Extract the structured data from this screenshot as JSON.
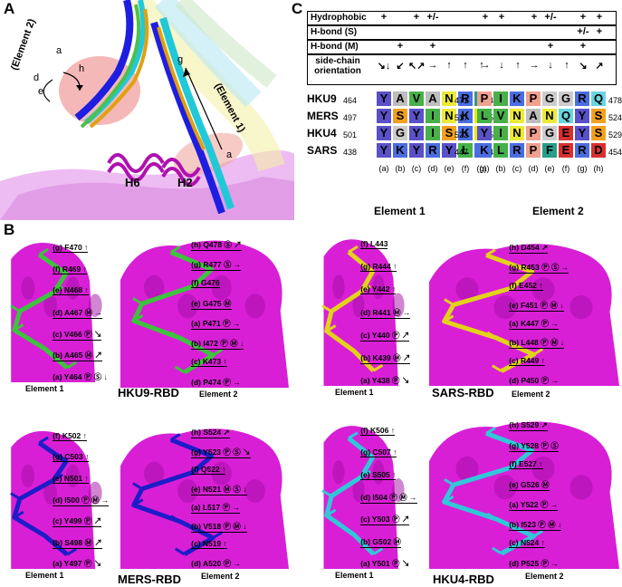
{
  "panels": {
    "a": "A",
    "b": "B",
    "c": "C"
  },
  "panelA": {
    "element2_label": "(Element 2)",
    "element1_label": "(Element 1)",
    "letters_left": [
      "a",
      "d",
      "e",
      "h"
    ],
    "letters_right": [
      "g",
      "a"
    ],
    "h6": "H6",
    "h2": "H2"
  },
  "panelC": {
    "rows": [
      {
        "label": "Hydrophobic",
        "marks_e1": [
          "+",
          "",
          "+",
          "+/-",
          "",
          "",
          ""
        ],
        "marks_e2": [
          "+",
          "+",
          "",
          "+",
          "+/-",
          "",
          "+",
          "+"
        ]
      },
      {
        "label": "H-bond (S)",
        "marks_e1": [
          "",
          "",
          "",
          "",
          "",
          "",
          ""
        ],
        "marks_e2": [
          "",
          "",
          "",
          "",
          "",
          "",
          "+/-",
          "+"
        ]
      },
      {
        "label": "H-bond (M)",
        "marks_e1": [
          "",
          "+",
          "",
          "+",
          "",
          "",
          ""
        ],
        "marks_e2": [
          "",
          "",
          "",
          "",
          "+",
          "",
          "+",
          ""
        ]
      },
      {
        "label": "side-chain orientation",
        "marks_e1": [
          "↘↓",
          "↙",
          "↖↗",
          "→",
          "↑",
          "↑",
          "↑"
        ],
        "marks_e2": [
          "→",
          "↓",
          "↑",
          "→",
          "↓",
          "↑",
          "↘",
          "↗"
        ]
      }
    ],
    "sequences": [
      {
        "name": "HKU9",
        "start1": "464",
        "end1": "470",
        "e1": [
          "Y",
          "A",
          "V",
          "A",
          "N",
          "R",
          "F"
        ],
        "start2": "471",
        "end2": "478",
        "e2": [
          "P",
          "I",
          "K",
          "P",
          "G",
          "G",
          "R",
          "Q"
        ]
      },
      {
        "name": "MERS",
        "start1": "497",
        "end1": "503",
        "e1": [
          "Y",
          "S",
          "Y",
          "I",
          "N",
          "K",
          "C"
        ],
        "start2": "517",
        "end2": "524",
        "e2": [
          "L",
          "V",
          "N",
          "A",
          "N",
          "Q",
          "Y",
          "S"
        ]
      },
      {
        "name": "HKU4",
        "start1": "501",
        "end1": "507",
        "e1": [
          "Y",
          "G",
          "Y",
          "I",
          "S",
          "K",
          "C"
        ],
        "start2": "522",
        "end2": "529",
        "e2": [
          "Y",
          "I",
          "N",
          "P",
          "G",
          "E",
          "Y",
          "S"
        ]
      },
      {
        "name": "SARS",
        "start1": "438",
        "end1": "444",
        "e1": [
          "Y",
          "K",
          "Y",
          "R",
          "Y",
          "L",
          "R"
        ],
        "start2": "447",
        "end2": "454",
        "e2": [
          "K",
          "L",
          "R",
          "P",
          "F",
          "E",
          "R",
          "D"
        ]
      }
    ],
    "cols_e1": [
      "(a)",
      "(b)",
      "(c)",
      "(d)",
      "(e)",
      "(f)",
      "(g)"
    ],
    "cols_e2": [
      "(a)",
      "(b)",
      "(c)",
      "(d)",
      "(e)",
      "(f)",
      "(g)",
      "(h)"
    ],
    "element1_title": "Element 1",
    "element2_title": "Element 2"
  },
  "panelB": {
    "hku9_e1": [
      "(g) F470 ↑",
      "(f) R469 ↑",
      "(e) N468 ↑",
      "(d) A467 Ⓜ →",
      "(c) V466 Ⓟ ↘",
      "(b) A465 Ⓜ ↗",
      "(a) Y464 Ⓟ Ⓢ ↓"
    ],
    "hku9_e2": [
      "(h) Q478 Ⓢ ↗",
      "(g) R477 Ⓢ →",
      "(f) G476",
      "(e) G475 Ⓜ",
      "(a) P471 Ⓟ →",
      "(b) I472 Ⓟ Ⓜ ↓",
      "(c) K473 ↑",
      "(d) P474 Ⓟ →"
    ],
    "sars_e1": [
      "(f) L443",
      "(g) R444 ↑",
      "(e) Y442 ↑",
      "(d) R441 Ⓜ →",
      "(c) Y440 Ⓟ ↗",
      "(b) K439 Ⓜ ↗",
      "(a) Y438 Ⓟ ↘"
    ],
    "sars_e2": [
      "(h) D454 ↗",
      "(g) R453 Ⓟ Ⓢ →",
      "(f) E452 ↑",
      "(e) F451 Ⓟ Ⓜ ↓",
      "(a) K447 Ⓟ →",
      "(b) L448 Ⓟ Ⓜ ↓",
      "(c) R449 ↑",
      "(d) P450 Ⓟ →"
    ],
    "mers_e1": [
      "(f) K502 ↑",
      "(g) C503 ↑",
      "(e) N501 ↑",
      "(d) I500 Ⓟ Ⓜ →",
      "(c) Y499 Ⓟ ↗",
      "(b) S498 Ⓜ ↗",
      "(a) Y497 Ⓟ ↘"
    ],
    "mers_e2": [
      "(h) S524 ↗",
      "(g) Y523 Ⓟ Ⓢ ↘",
      "(f) Q522 ↑",
      "(e) N521 Ⓜ Ⓢ ↓",
      "(a) L517 Ⓟ →",
      "(b) V518 Ⓟ Ⓜ ↓",
      "(c) N519 ↑",
      "(d) A520 Ⓟ →"
    ],
    "hku4_e1": [
      "(f) K506 ↑",
      "(g) C507 ↑",
      "(e) S505 ↑",
      "(d) I504 Ⓟ Ⓜ →",
      "(c) Y503 Ⓟ ↗",
      "(b) G502 Ⓜ",
      "(a) Y501 Ⓟ ↘"
    ],
    "hku4_e2": [
      "(h) S529 ↗",
      "(g) Y528 Ⓟ Ⓢ",
      "(f) E527 ↑",
      "(e) G526 Ⓜ",
      "(a) Y522 Ⓟ →",
      "(b) I523 Ⓟ Ⓜ ↓",
      "(c) N524 ↑",
      "(d) P525 Ⓟ →"
    ],
    "names": {
      "hku9": "HKU9-RBD",
      "sars": "SARS-RBD",
      "mers": "MERS-RBD",
      "hku4": "HKU4-RBD"
    },
    "elem1": "Element 1",
    "elem2": "Element 2"
  },
  "colors": {
    "magenta": "#d81fd6",
    "magenta_dark": "#a30ea6",
    "green_stick": "#3cc43c",
    "yellow_stick": "#e2d21c",
    "blue_stick": "#1d1dc8",
    "cyan_stick": "#30c8d8",
    "Y": "#5a50c8",
    "A": "#bdbdbd",
    "V": "#49b049",
    "N": "#ecea38",
    "R": "#4a6de0",
    "F": "#2a9c8a",
    "P": "#f0a090",
    "I": "#49b049",
    "K": "#4a6de0",
    "G": "#cccccc",
    "Q": "#6ad4e0",
    "S": "#f3a020",
    "C": "#e8e800",
    "L": "#44b24a",
    "E": "#d83030",
    "D": "#d83030"
  }
}
